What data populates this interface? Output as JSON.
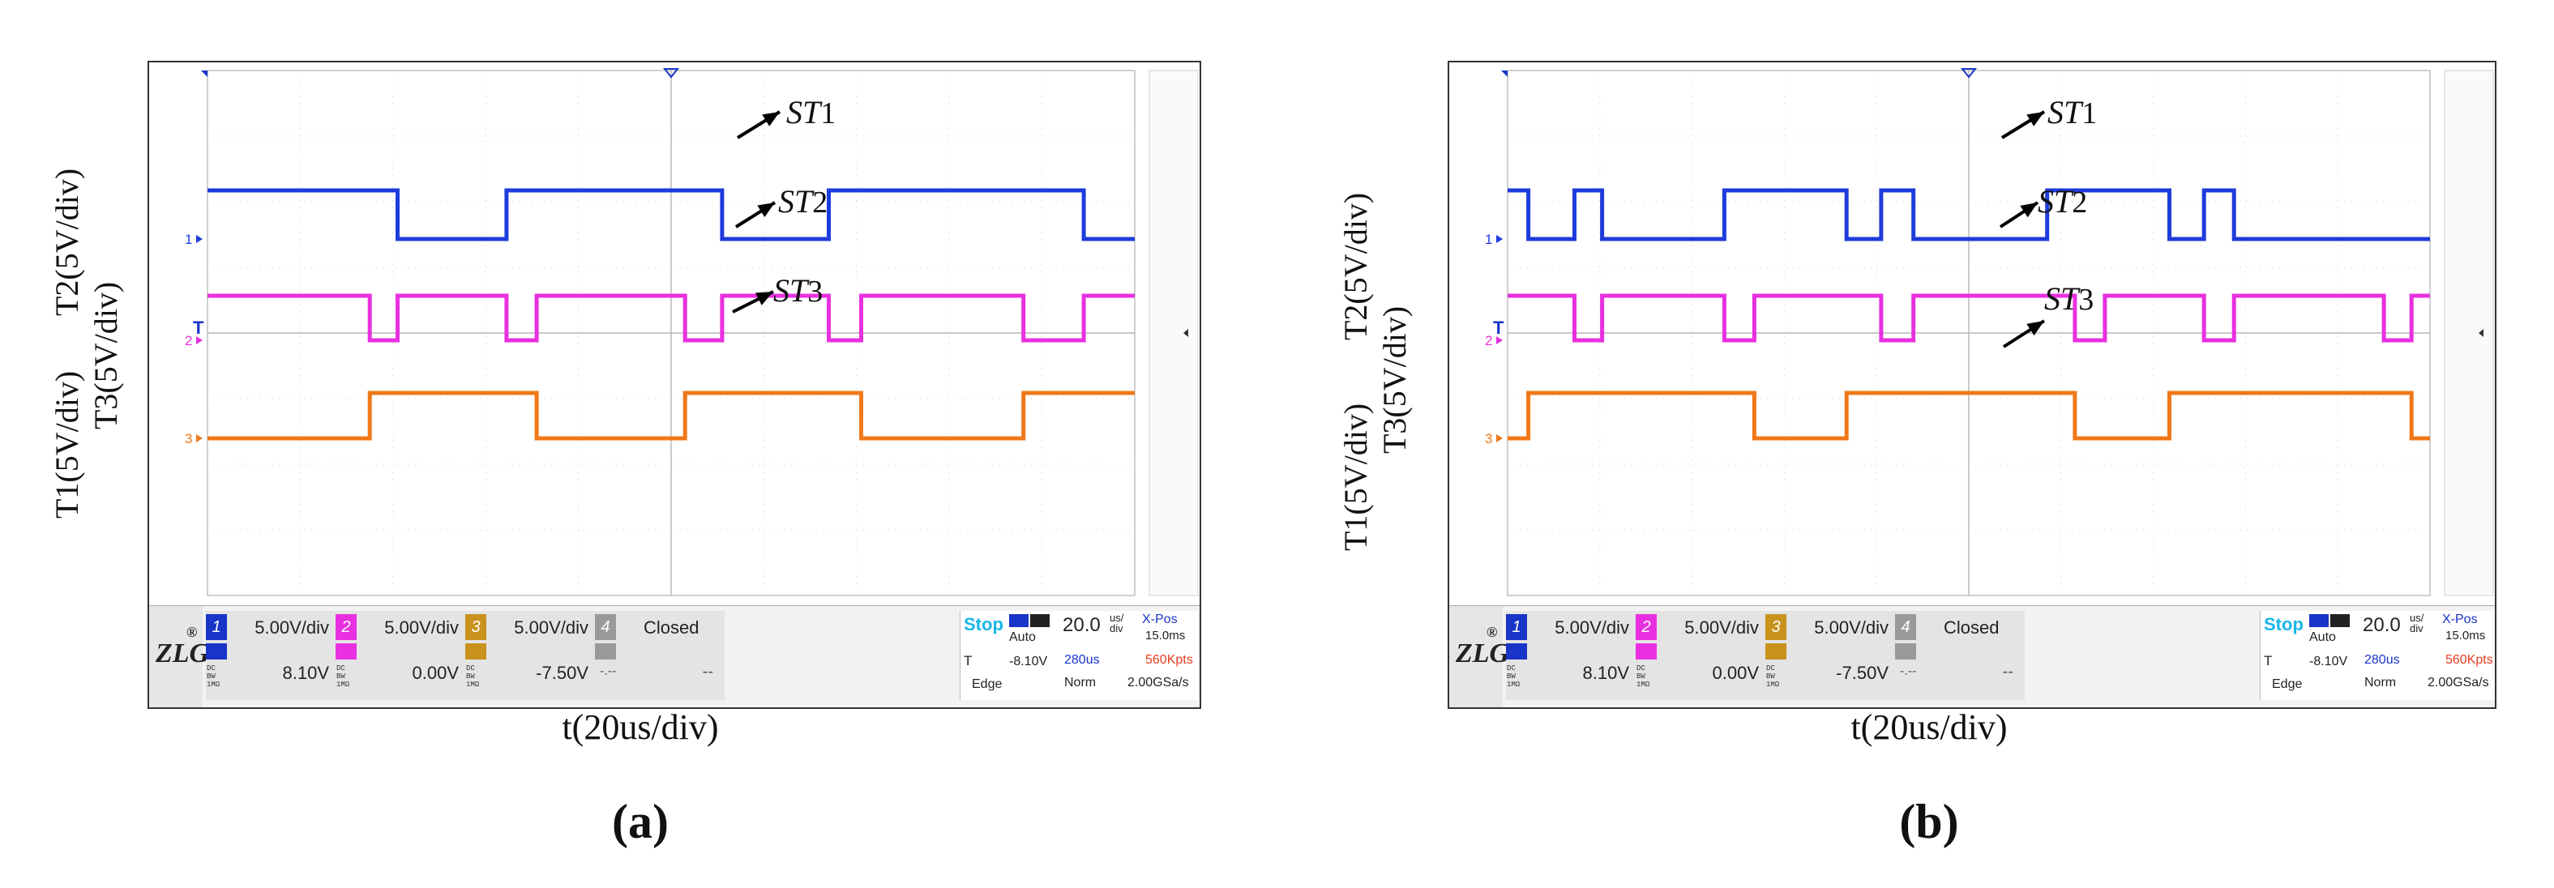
{
  "chart_data": [
    {
      "type": "line",
      "panel_label": "(a)",
      "xlabel": "t(20us/div)",
      "ylabel_lines": [
        "T1(5V/div)",
        "T2(5V/div)",
        "T3(5V/div)"
      ],
      "x_divisions": 10,
      "y_divisions": 8,
      "series": [
        {
          "name": "ST1",
          "channel": "1",
          "color": "#1e3cdc",
          "x": [
            0,
            4.1,
            4.1,
            6.45,
            6.45,
            11.1,
            11.1,
            13.4,
            13.4,
            18.9,
            18.9,
            20
          ],
          "levels": [
            1,
            1,
            0,
            0,
            1,
            1,
            0,
            0,
            1,
            1,
            0,
            0
          ]
        },
        {
          "name": "ST2",
          "channel": "2",
          "color": "#e830e0",
          "x": [
            0,
            3.5,
            3.5,
            4.1,
            4.1,
            6.45,
            6.45,
            7.1,
            7.1,
            10.3,
            10.3,
            11.1,
            11.1,
            13.4,
            13.4,
            14.1,
            14.1,
            17.6,
            17.6,
            18.9,
            18.9,
            20
          ],
          "levels": [
            1,
            1,
            0,
            0,
            1,
            1,
            0,
            0,
            1,
            1,
            0,
            0,
            1,
            1,
            0,
            0,
            1,
            1,
            0,
            0,
            1,
            1
          ]
        },
        {
          "name": "ST3",
          "channel": "3",
          "color": "#f07818",
          "x": [
            0,
            3.5,
            3.5,
            7.1,
            7.1,
            10.3,
            10.3,
            14.1,
            14.1,
            17.6,
            17.6,
            20
          ],
          "levels": [
            0,
            0,
            1,
            1,
            0,
            0,
            1,
            1,
            0,
            0,
            1,
            1
          ]
        }
      ],
      "annotations": [
        {
          "label_main": "ST",
          "label_sub": "1",
          "series": "ST1"
        },
        {
          "label_main": "ST",
          "label_sub": "2",
          "series": "ST2"
        },
        {
          "label_main": "ST",
          "label_sub": "3",
          "series": "ST3"
        }
      ]
    },
    {
      "type": "line",
      "panel_label": "(b)",
      "xlabel": "t(20us/div)",
      "ylabel_lines": [
        "T1(5V/div)",
        "T2(5V/div)",
        "T3(5V/div)"
      ],
      "x_divisions": 10,
      "y_divisions": 8,
      "series": [
        {
          "name": "ST1",
          "channel": "1",
          "color": "#1e3cdc",
          "x": [
            0,
            0.45,
            0.45,
            1.45,
            1.45,
            2.05,
            2.05,
            4.7,
            4.7,
            7.35,
            7.35,
            8.1,
            8.1,
            8.8,
            8.8,
            11.7,
            11.7,
            14.35,
            14.35,
            15.1,
            15.1,
            15.75,
            15.75,
            20
          ],
          "levels": [
            1,
            1,
            0,
            0,
            1,
            1,
            0,
            0,
            1,
            1,
            0,
            0,
            1,
            1,
            0,
            0,
            1,
            1,
            0,
            0,
            1,
            1,
            0,
            0
          ]
        },
        {
          "name": "ST2",
          "channel": "2",
          "color": "#e830e0",
          "x": [
            0,
            1.45,
            1.45,
            2.05,
            2.05,
            4.7,
            4.7,
            5.35,
            5.35,
            8.1,
            8.1,
            8.8,
            8.8,
            12.3,
            12.3,
            12.95,
            12.95,
            15.1,
            15.1,
            15.75,
            15.75,
            19.0,
            19.0,
            19.6,
            19.6,
            20
          ],
          "levels": [
            1,
            1,
            0,
            0,
            1,
            1,
            0,
            0,
            1,
            1,
            0,
            0,
            1,
            1,
            0,
            0,
            1,
            1,
            0,
            0,
            1,
            1,
            0,
            0,
            1,
            1
          ]
        },
        {
          "name": "ST3",
          "channel": "3",
          "color": "#f07818",
          "x": [
            0,
            0.45,
            0.45,
            5.35,
            5.35,
            7.35,
            7.35,
            12.3,
            12.3,
            14.35,
            14.35,
            19.6,
            19.6,
            20
          ],
          "levels": [
            0,
            0,
            1,
            1,
            0,
            0,
            1,
            1,
            0,
            0,
            1,
            1,
            0,
            0
          ]
        }
      ],
      "annotations": [
        {
          "label_main": "ST",
          "label_sub": "1",
          "series": "ST1"
        },
        {
          "label_main": "ST",
          "label_sub": "2",
          "series": "ST2"
        },
        {
          "label_main": "ST",
          "label_sub": "3",
          "series": "ST3"
        }
      ]
    }
  ],
  "scope_status": {
    "logo": "ZLG",
    "logo_mark": "®",
    "channels": [
      {
        "num": "1",
        "scale": "5.00V/div",
        "offset": "8.10V",
        "color": "#1935c8",
        "coupling": [
          "DC",
          "BW",
          "1MΩ"
        ]
      },
      {
        "num": "2",
        "scale": "5.00V/div",
        "offset": "0.00V",
        "color": "#e830e0",
        "coupling": [
          "DC",
          "BW",
          "1MΩ"
        ]
      },
      {
        "num": "3",
        "scale": "5.00V/div",
        "offset": "-7.50V",
        "color": "#c8921c",
        "coupling": [
          "DC",
          "BW",
          "1MΩ"
        ]
      }
    ],
    "channel4": {
      "num": "4",
      "state": "Closed",
      "dash": "--",
      "dash_small": "-.--"
    },
    "trigger": {
      "state": "Stop",
      "mode": "Auto",
      "timebase": "20.0",
      "timebase_unit_top": "us/",
      "timebase_unit_bottom": "div",
      "xpos_label": "X-Pos",
      "xpos_value": "15.0ms",
      "t_label": "T",
      "t_value": "-8.10V",
      "edge": "Edge",
      "position": "280us",
      "norm": "Norm",
      "kpts": "560Kpts",
      "rate": "2.00GSa/s"
    },
    "channel_markers": [
      "1",
      "2",
      "3"
    ],
    "trigger_marker": "T"
  }
}
